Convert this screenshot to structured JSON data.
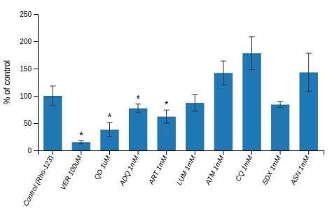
{
  "chart_data": {
    "type": "bar",
    "categories": [
      "Control (Rho-123)",
      "VER 100uM",
      "QD 1uM",
      "ADQ 1mM",
      "ART 1mM",
      "LUM 1mM",
      "ATM 1mM",
      "CQ 1mM",
      "SDX 1mM",
      "ASN 1mM"
    ],
    "values": [
      100,
      15,
      38,
      77,
      62,
      87,
      142,
      178,
      84,
      143
    ],
    "errors": [
      18,
      3,
      13,
      8,
      12,
      15,
      22,
      30,
      5,
      35
    ],
    "annotations": [
      null,
      "*",
      "*",
      "*",
      "*",
      null,
      null,
      null,
      null,
      null
    ],
    "ylabel": "% of control",
    "ylim": [
      0,
      250
    ],
    "yticks": [
      0,
      50,
      100,
      150,
      200,
      250
    ],
    "grid": false
  }
}
